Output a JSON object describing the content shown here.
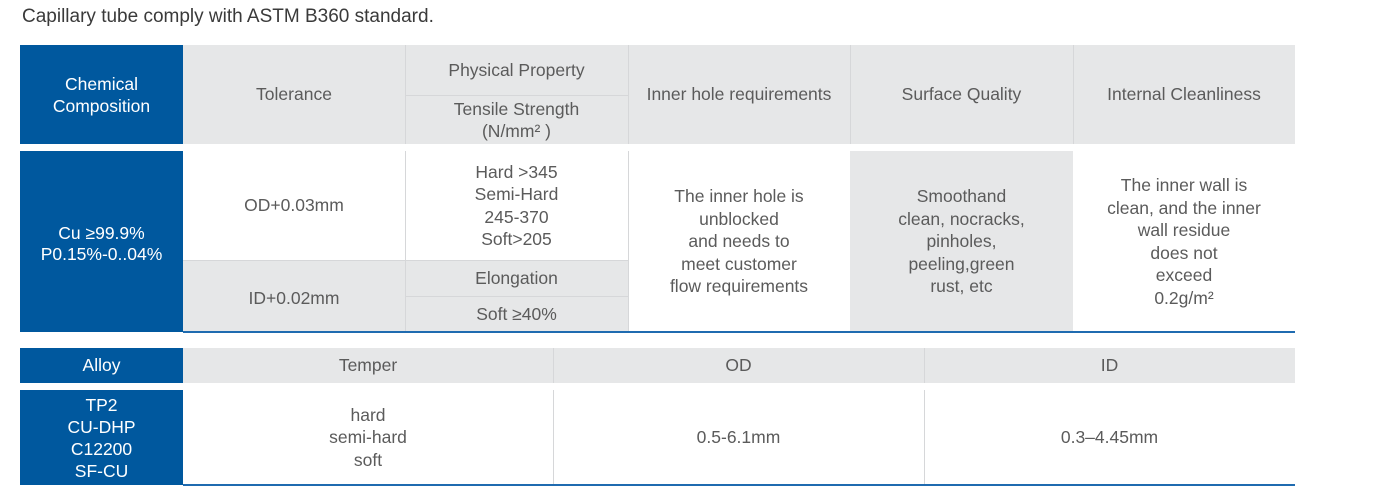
{
  "title": "Capillary tube comply with ASTM B360 standard.",
  "table1": {
    "headers": {
      "chemical": "Chemical\nComposition",
      "tolerance": "Tolerance",
      "physical": "Physical Property",
      "tensile": "Tensile Strength\n(N/mm² )",
      "inner_hole": "Inner hole requirements",
      "surface": "Surface Quality",
      "cleanliness": "Internal Cleanliness"
    },
    "body": {
      "chemical": "Cu ≥99.9%\nP0.15%-0..04%",
      "tolerance_od": "OD+0.03mm",
      "tolerance_id": "ID+0.02mm",
      "tensile": "Hard >345\nSemi-Hard\n245-370\nSoft>205",
      "elongation_label": "Elongation",
      "elongation": "Soft ≥40%",
      "inner_hole": "The inner hole is\nunblocked\nand needs to\nmeet customer\nflow requirements",
      "surface": "Smoothand\nclean, nocracks,\npinholes,\npeeling,green\nrust, etc",
      "cleanliness": "The inner wall is\nclean, and the inner\nwall residue\ndoes not\nexceed\n0.2g/m²"
    }
  },
  "table2": {
    "headers": {
      "alloy": "Alloy",
      "temper": "Temper",
      "od": "OD",
      "id": "ID"
    },
    "body": {
      "alloy": "TP2\nCU-DHP\nC12200\nSF-CU",
      "temper": "hard\nsemi-hard\nsoft",
      "od": "0.5-6.1mm",
      "id": "0.3–4.45mm"
    }
  },
  "colors": {
    "brand_blue": "#00589e",
    "header_gray": "#e6e7e8",
    "text": "#5b5b5b"
  }
}
